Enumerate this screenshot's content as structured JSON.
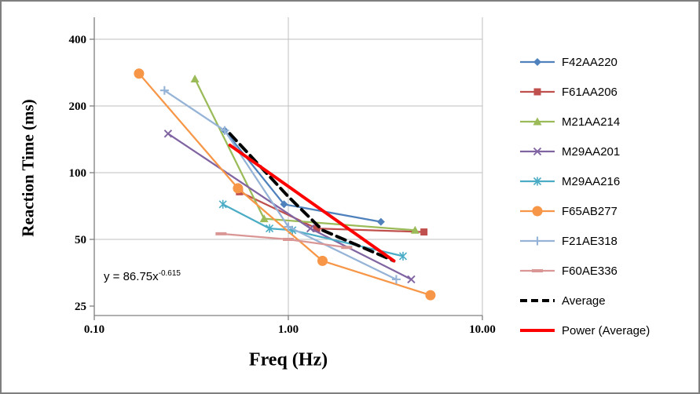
{
  "colors": {
    "grid": "#BFBFBF",
    "axis": "#7F7F7F",
    "border": "#7F7F7F",
    "text": "#000000"
  },
  "chart_data": {
    "type": "line",
    "title": "",
    "xlabel": "Freq (Hz)",
    "ylabel": "Reaction Time (ms)",
    "x_scale": "log",
    "y_scale": "log",
    "xlim": [
      0.1,
      10.0
    ],
    "ylim": [
      25,
      400
    ],
    "grid": true,
    "legend_position": "right",
    "x_ticks": [
      {
        "label": "0.10",
        "value": 0.1
      },
      {
        "label": "1.00",
        "value": 1
      },
      {
        "label": "10.00",
        "value": 10
      }
    ],
    "y_ticks": [
      {
        "label": "25",
        "value": 25
      },
      {
        "label": "50",
        "value": 50
      },
      {
        "label": "100",
        "value": 100
      },
      {
        "label": "200",
        "value": 200
      },
      {
        "label": "400",
        "value": 400
      }
    ],
    "trendline_equation": {
      "base": "y = 86.75x",
      "exponent": "-0.615"
    },
    "series": [
      {
        "name": "F42AA220",
        "color": "#4F81BD",
        "marker": "diamond",
        "line": "solid",
        "width": 2.25,
        "x": [
          0.47,
          0.95,
          3.0
        ],
        "y": [
          155,
          72,
          60
        ]
      },
      {
        "name": "F61AA206",
        "color": "#C0504D",
        "marker": "square",
        "line": "solid",
        "width": 2.25,
        "x": [
          0.56,
          1.4,
          5.0
        ],
        "y": [
          82,
          56,
          54
        ]
      },
      {
        "name": "M21AA214",
        "color": "#9BBB59",
        "marker": "triangle",
        "line": "solid",
        "width": 2.25,
        "x": [
          0.33,
          0.75,
          4.5
        ],
        "y": [
          265,
          62,
          55
        ]
      },
      {
        "name": "M29AA201",
        "color": "#8064A2",
        "marker": "x",
        "line": "solid",
        "width": 2.25,
        "x": [
          0.24,
          1.3,
          4.3
        ],
        "y": [
          150,
          56,
          33
        ]
      },
      {
        "name": "M29AA216",
        "color": "#4BACC6",
        "marker": "star",
        "line": "solid",
        "width": 2.25,
        "x": [
          0.46,
          0.8,
          1.05,
          3.9
        ],
        "y": [
          72,
          56,
          55,
          42
        ]
      },
      {
        "name": "F65AB277",
        "color": "#F79646",
        "marker": "circle",
        "line": "solid",
        "width": 2.25,
        "x": [
          0.17,
          0.55,
          1.5,
          5.4
        ],
        "y": [
          280,
          85,
          40,
          28
        ]
      },
      {
        "name": "F21AE318",
        "color": "#95B3D7",
        "marker": "plus",
        "line": "solid",
        "width": 2.25,
        "x": [
          0.23,
          0.47,
          1.0,
          3.6
        ],
        "y": [
          235,
          155,
          57,
          33
        ]
      },
      {
        "name": "F60AE336",
        "color": "#D99694",
        "marker": "dash",
        "line": "solid",
        "width": 2.25,
        "x": [
          0.45,
          1.0,
          2.0
        ],
        "y": [
          53,
          50,
          46
        ]
      },
      {
        "name": "Average",
        "color": "#000000",
        "marker": "none",
        "line": "dashed",
        "width": 4,
        "x": [
          0.5,
          1.0,
          1.5,
          3.5
        ],
        "y": [
          150,
          78,
          55,
          40
        ]
      },
      {
        "name": "Power (Average)",
        "color": "#FF0000",
        "marker": "none",
        "line": "solid",
        "width": 4,
        "x": [
          0.5,
          3.5
        ],
        "y": [
          133,
          40
        ]
      }
    ]
  }
}
